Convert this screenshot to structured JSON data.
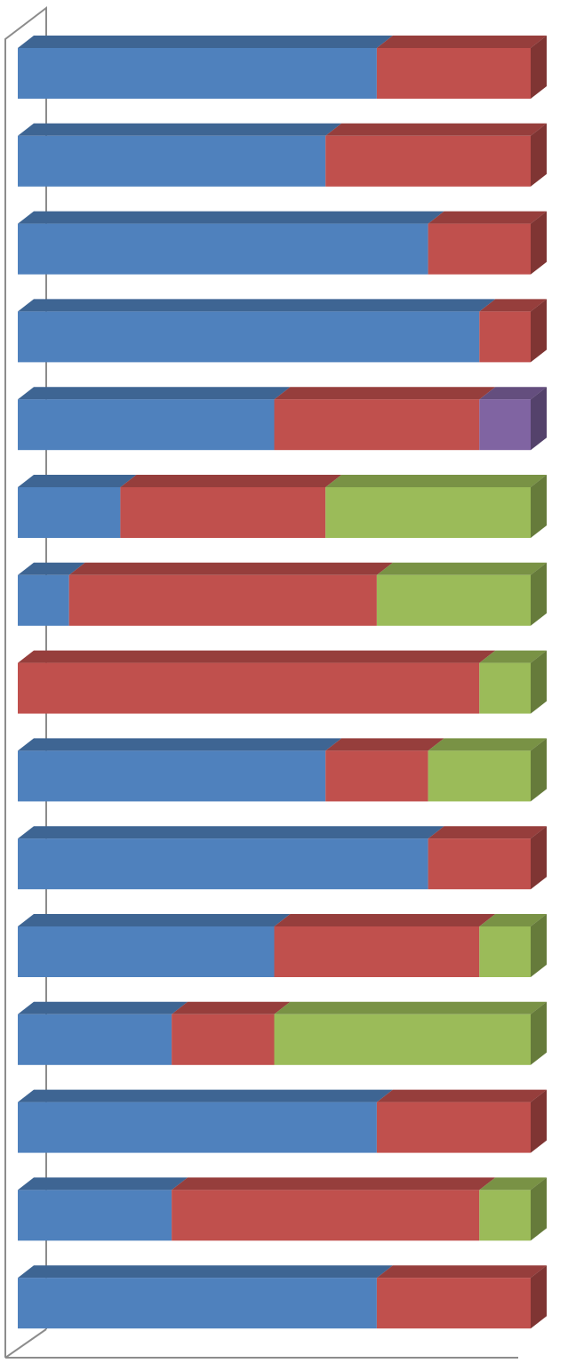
{
  "chart_data": {
    "type": "bar",
    "orientation": "horizontal",
    "stacked": "percent",
    "style": "3d",
    "title": "",
    "xlabel": "",
    "ylabel": "",
    "xlim": [
      0,
      1
    ],
    "grid": false,
    "legend": "none",
    "series": [
      {
        "color": "#4F81BD",
        "values": [
          0.7,
          0.6,
          0.8,
          0.9,
          0.5,
          0.2,
          0.1,
          0.0,
          0.6,
          0.8,
          0.5,
          0.3,
          0.7,
          0.3,
          0.7
        ]
      },
      {
        "color": "#C0504D",
        "values": [
          0.3,
          0.4,
          0.2,
          0.1,
          0.4,
          0.4,
          0.6,
          0.9,
          0.2,
          0.2,
          0.4,
          0.2,
          0.3,
          0.6,
          0.3
        ]
      },
      {
        "color": "#9BBB59",
        "values": [
          0.0,
          0.0,
          0.0,
          0.0,
          0.0,
          0.4,
          0.3,
          0.1,
          0.2,
          0.0,
          0.1,
          0.5,
          0.0,
          0.1,
          0.0
        ]
      },
      {
        "color": "#8064A2",
        "values": [
          0.0,
          0.0,
          0.0,
          0.0,
          0.1,
          0.0,
          0.0,
          0.0,
          0.0,
          0.0,
          0.0,
          0.0,
          0.0,
          0.0,
          0.0
        ]
      }
    ]
  }
}
